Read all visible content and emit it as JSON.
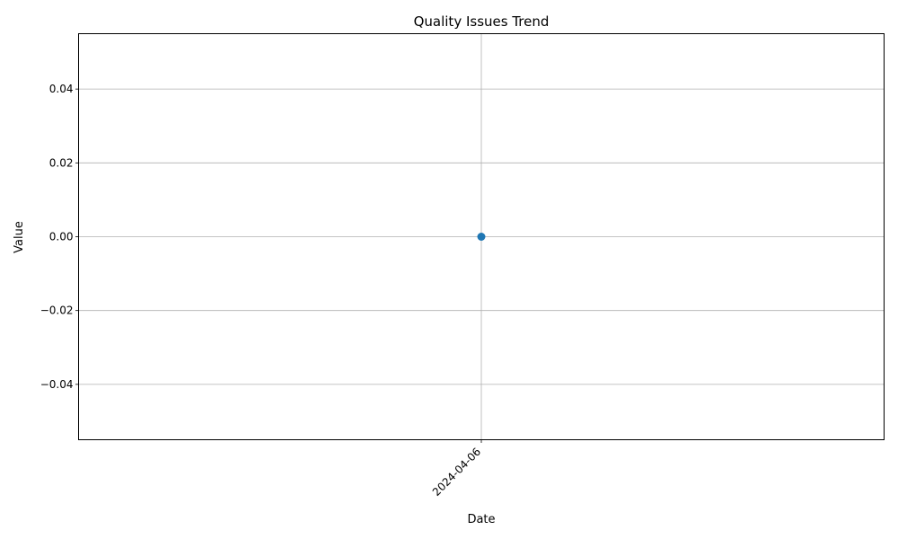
{
  "chart_data": {
    "type": "line",
    "title": "Quality Issues Trend",
    "xlabel": "Date",
    "ylabel": "Value",
    "x": [
      "2024-04-06"
    ],
    "series": [
      {
        "values": [
          0.0
        ],
        "color": "#1f77b4",
        "marker": "circle"
      }
    ],
    "ylim": [
      -0.055,
      0.055
    ],
    "yticks": [
      -0.04,
      -0.02,
      0.0,
      0.02,
      0.04
    ],
    "ytick_labels": [
      "−0.04",
      "−0.02",
      "0.00",
      "0.02",
      "0.04"
    ],
    "xtick_labels": [
      "2024-04-06"
    ],
    "xtick_rotation": 45,
    "grid": true,
    "legend": "none"
  }
}
